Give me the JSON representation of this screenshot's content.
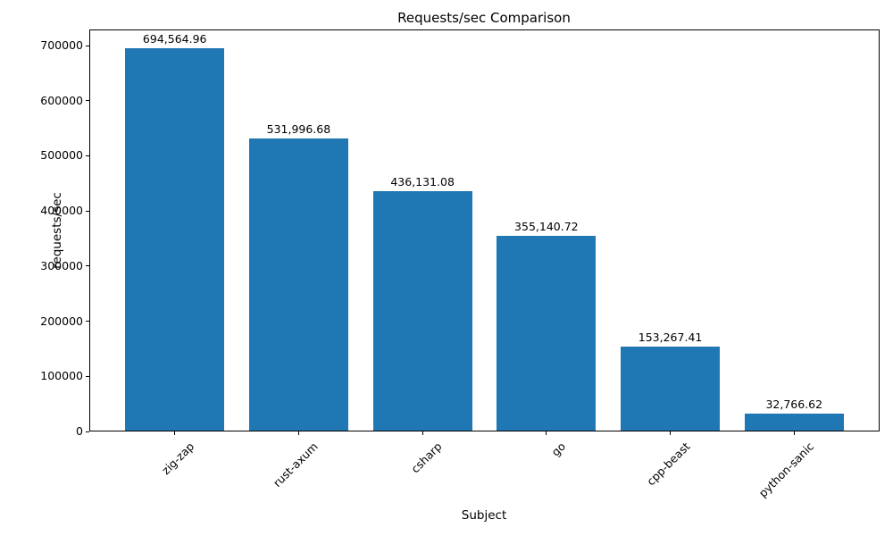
{
  "figure": {
    "background": "#ffffff"
  },
  "chart_data": {
    "type": "bar",
    "title": "Requests/sec Comparison",
    "xlabel": "Subject",
    "ylabel": "requests/sec",
    "categories": [
      "zig-zap",
      "rust-axum",
      "csharp",
      "go",
      "cpp-beast",
      "python-sanic"
    ],
    "values": [
      694564.96,
      531996.68,
      436131.08,
      355140.72,
      153267.41,
      32766.62
    ],
    "value_labels": [
      "694,564.96",
      "531,996.68",
      "436,131.08",
      "355,140.72",
      "153,267.41",
      "32,766.62"
    ],
    "bar_color": "#1f77b4",
    "text_color": "#000000",
    "ylim": [
      0,
      729293.2
    ],
    "yticks": [
      0,
      100000,
      200000,
      300000,
      400000,
      500000,
      600000,
      700000
    ],
    "ytick_labels": [
      "0",
      "100000",
      "200000",
      "300000",
      "400000",
      "500000",
      "600000",
      "700000"
    ],
    "xtick_rotation": 45,
    "grid": false,
    "legend": null
  }
}
